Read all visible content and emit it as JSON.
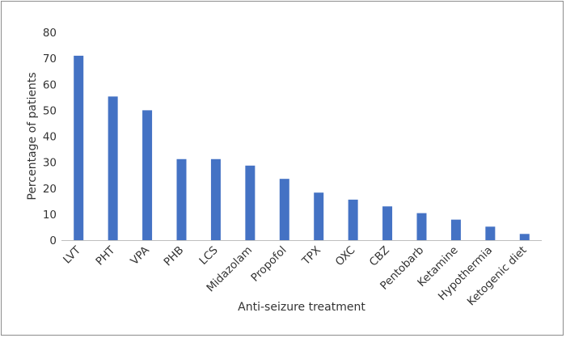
{
  "chart_data": {
    "type": "bar",
    "title": "",
    "xlabel": "Anti-seizure treatment",
    "ylabel": "Percentage of patients",
    "ylim": [
      0,
      80
    ],
    "yticks": [
      0,
      10,
      20,
      30,
      40,
      50,
      60,
      70,
      80
    ],
    "grid": false,
    "legend": "none",
    "bar_color": "#4472c4",
    "categories": [
      "LVT",
      "PHT",
      "VPA",
      "PHB",
      "LCS",
      "Midazolam",
      "Propofol",
      "TPX",
      "OXC",
      "CBZ",
      "Pentobarb",
      "Ketamine",
      "Hypothermia",
      "Ketogenic diet"
    ],
    "values": [
      71,
      55.3,
      50,
      31.2,
      31.2,
      28.7,
      23.6,
      18.3,
      15.6,
      13,
      10.4,
      7.9,
      5.2,
      2.4
    ]
  }
}
